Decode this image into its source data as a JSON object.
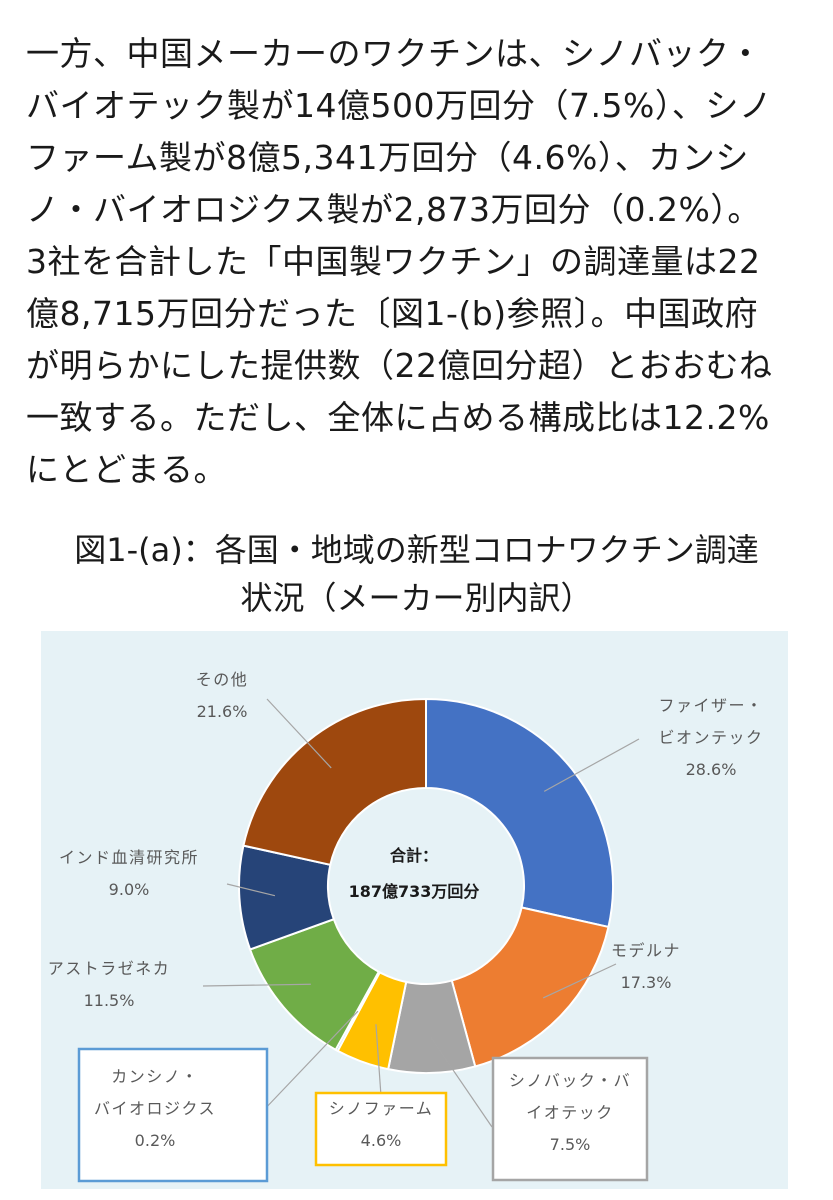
{
  "paragraph": {
    "lines": [
      "一方、中国メーカーのワクチンは、シノバック・",
      "バイオテック製が14億500万回分（7.5%）、シノ",
      "ファーム製が8億5,341万回分（4.6%）、カンシ",
      "ノ・バイオロジクス製が2,873万回分（0.2%）。",
      "3社を合計した「中国製ワクチン」の調達量は22",
      "億8,715万回分だった〔図1-(b)参照〕。中国政府",
      "が明らかにした提供数（22億回分超）とおおむね",
      "一致する。ただし、全体に占める構成比は12.2%",
      "にとどまる。"
    ]
  },
  "figure": {
    "title_line1": "図1-(a)：各国・地域の新型コロナワクチン調達",
    "title_line2": "状況（メーカー別内訳）"
  },
  "chart_data": {
    "type": "pie",
    "variant": "donut",
    "center_label_line1": "合計：",
    "center_label_line2": "187億733万回分",
    "slices": [
      {
        "id": "pfizer",
        "label_lines": [
          "ファイザー・",
          "ビオンテック"
        ],
        "value": 28.6,
        "pct_label": "28.6%",
        "color": "#4472c4"
      },
      {
        "id": "moderna",
        "label_lines": [
          "モデルナ"
        ],
        "value": 17.3,
        "pct_label": "17.3%",
        "color": "#ed7d31"
      },
      {
        "id": "sinovac",
        "label_lines": [
          "シノバック・バ",
          "イオテック"
        ],
        "value": 7.5,
        "pct_label": "7.5%",
        "color": "#a5a5a5"
      },
      {
        "id": "sinopharm",
        "label_lines": [
          "シノファーム"
        ],
        "value": 4.6,
        "pct_label": "4.6%",
        "color": "#ffc000"
      },
      {
        "id": "cansino",
        "label_lines": [
          "カンシノ・",
          "バイオロジクス"
        ],
        "value": 0.2,
        "pct_label": "0.2%",
        "color": "#5b9bd5"
      },
      {
        "id": "astrazeneca",
        "label_lines": [
          "アストラゼネカ"
        ],
        "value": 11.5,
        "pct_label": "11.5%",
        "color": "#70ad47"
      },
      {
        "id": "serum",
        "label_lines": [
          "インド血清研究所"
        ],
        "value": 9.0,
        "pct_label": "9.0%",
        "color": "#264478"
      },
      {
        "id": "other",
        "label_lines": [
          "その他"
        ],
        "value": 21.6,
        "pct_label": "21.6%",
        "color": "#9e480e"
      }
    ],
    "boxed_labels": {
      "sinovac": "#a5a5a5",
      "sinopharm": "#ffc000",
      "cansino": "#5b9bd5"
    },
    "colors": {
      "background": "#e6f2f6",
      "leader_line": "#a6a6a6",
      "label_text": "#595959"
    }
  }
}
